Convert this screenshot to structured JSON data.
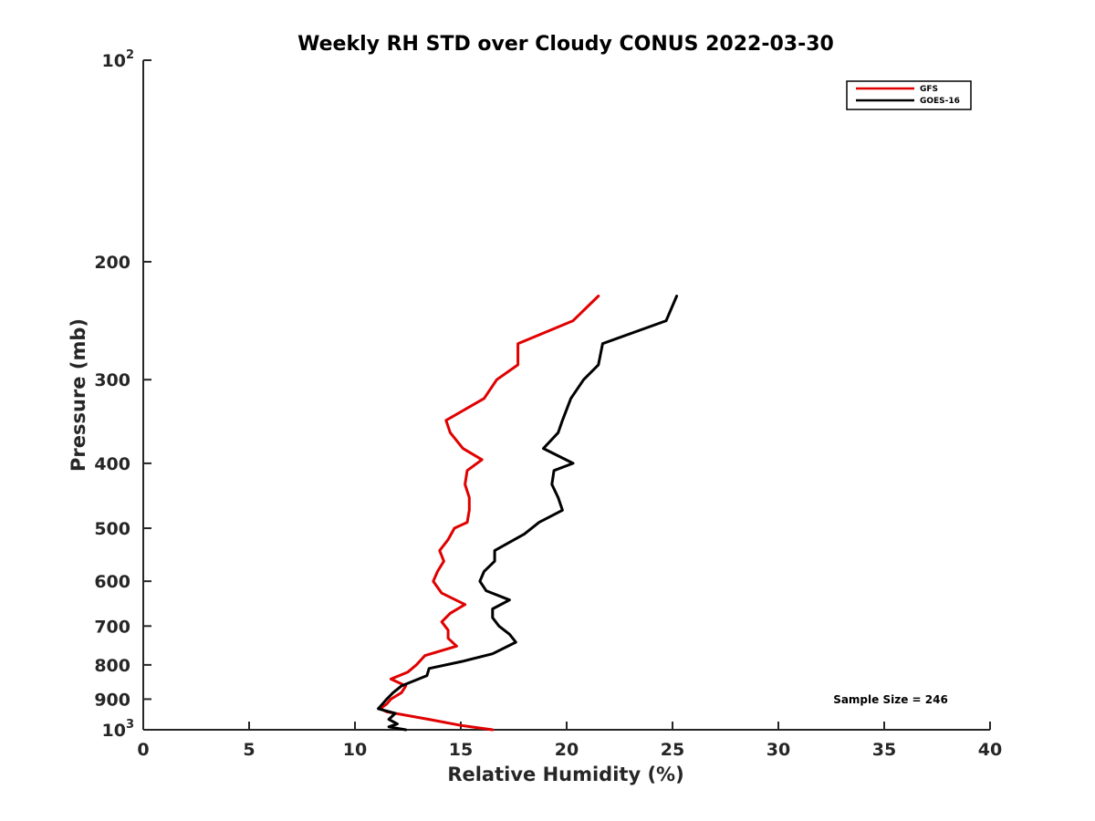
{
  "chart_data": {
    "type": "line",
    "title": "Weekly RH STD over Cloudy CONUS 2022-03-30",
    "xlabel": "Relative Humidity (%)",
    "ylabel": "Pressure (mb)",
    "xlim": [
      0,
      40
    ],
    "ylim": [
      100,
      1000
    ],
    "yscale": "log",
    "y_reversed": true,
    "grid": false,
    "legend_position": "top-right",
    "x_ticks": [
      0,
      5,
      10,
      15,
      20,
      25,
      30,
      35,
      40
    ],
    "y_ticks": [
      {
        "value": 100,
        "base": "10",
        "exp": "2"
      },
      {
        "value": 200,
        "label": "200"
      },
      {
        "value": 300,
        "label": "300"
      },
      {
        "value": 400,
        "label": "400"
      },
      {
        "value": 500,
        "label": "500"
      },
      {
        "value": 600,
        "label": "600"
      },
      {
        "value": 700,
        "label": "700"
      },
      {
        "value": 800,
        "label": "800"
      },
      {
        "value": 900,
        "label": "900"
      },
      {
        "value": 1000,
        "base": "10",
        "exp": "3"
      }
    ],
    "series": [
      {
        "name": "GFS",
        "color": "#e00000",
        "points": [
          [
            21.5,
            225
          ],
          [
            20.3,
            245
          ],
          [
            17.7,
            265
          ],
          [
            17.7,
            285
          ],
          [
            16.7,
            300
          ],
          [
            16.1,
            320
          ],
          [
            14.3,
            345
          ],
          [
            14.5,
            360
          ],
          [
            15.1,
            380
          ],
          [
            16.0,
            395
          ],
          [
            15.3,
            410
          ],
          [
            15.2,
            430
          ],
          [
            15.4,
            450
          ],
          [
            15.4,
            470
          ],
          [
            15.3,
            490
          ],
          [
            14.7,
            500
          ],
          [
            14.4,
            520
          ],
          [
            14.0,
            540
          ],
          [
            14.2,
            560
          ],
          [
            13.9,
            580
          ],
          [
            13.7,
            600
          ],
          [
            14.1,
            625
          ],
          [
            15.2,
            650
          ],
          [
            14.5,
            670
          ],
          [
            14.1,
            690
          ],
          [
            14.4,
            710
          ],
          [
            14.4,
            730
          ],
          [
            14.8,
            750
          ],
          [
            13.3,
            775
          ],
          [
            12.9,
            800
          ],
          [
            12.5,
            820
          ],
          [
            11.7,
            840
          ],
          [
            12.4,
            860
          ],
          [
            12.2,
            880
          ],
          [
            11.7,
            900
          ],
          [
            11.5,
            915
          ],
          [
            11.2,
            930
          ],
          [
            11.5,
            940
          ],
          [
            13.5,
            965
          ],
          [
            15.0,
            985
          ],
          [
            16.5,
            1000
          ]
        ]
      },
      {
        "name": "GOES-16",
        "color": "#000000",
        "points": [
          [
            25.2,
            225
          ],
          [
            24.7,
            245
          ],
          [
            21.7,
            265
          ],
          [
            21.5,
            285
          ],
          [
            20.8,
            300
          ],
          [
            20.2,
            320
          ],
          [
            19.8,
            345
          ],
          [
            19.6,
            360
          ],
          [
            18.9,
            380
          ],
          [
            20.3,
            400
          ],
          [
            19.4,
            410
          ],
          [
            19.3,
            430
          ],
          [
            19.6,
            450
          ],
          [
            19.8,
            470
          ],
          [
            18.7,
            490
          ],
          [
            18.0,
            510
          ],
          [
            16.6,
            540
          ],
          [
            16.6,
            560
          ],
          [
            16.1,
            580
          ],
          [
            15.9,
            600
          ],
          [
            16.2,
            620
          ],
          [
            17.3,
            640
          ],
          [
            16.5,
            660
          ],
          [
            16.5,
            680
          ],
          [
            16.8,
            700
          ],
          [
            17.3,
            720
          ],
          [
            17.6,
            740
          ],
          [
            16.5,
            770
          ],
          [
            15.1,
            790
          ],
          [
            13.5,
            810
          ],
          [
            13.4,
            830
          ],
          [
            12.2,
            860
          ],
          [
            11.8,
            880
          ],
          [
            11.5,
            900
          ],
          [
            11.3,
            915
          ],
          [
            11.1,
            930
          ],
          [
            11.9,
            945
          ],
          [
            11.6,
            965
          ],
          [
            12.0,
            980
          ],
          [
            11.6,
            990
          ],
          [
            12.4,
            1000
          ]
        ]
      }
    ],
    "annotations": [
      "Sample Size = 246"
    ]
  }
}
